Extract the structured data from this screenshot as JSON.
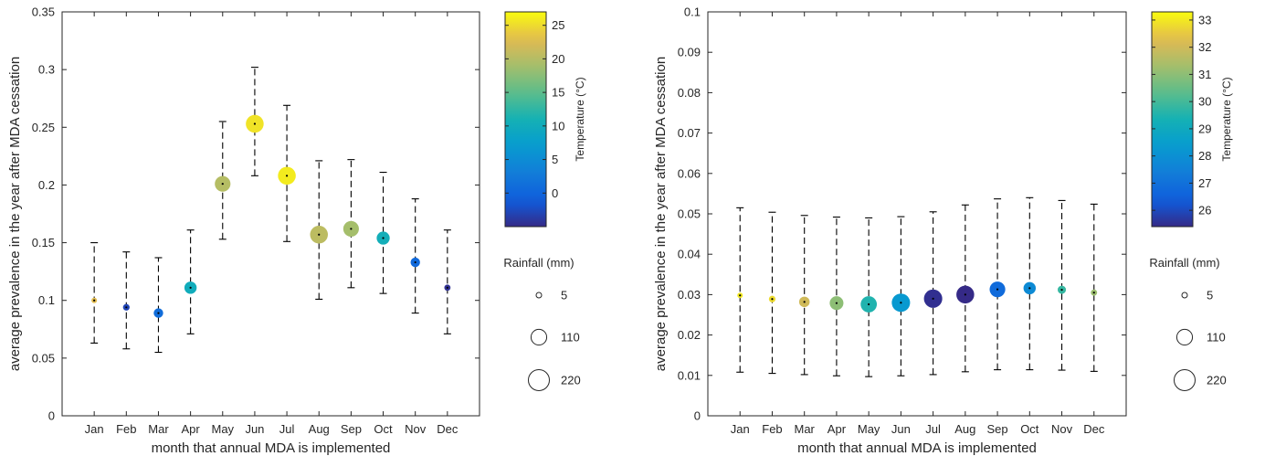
{
  "chart_data": [
    {
      "type": "scatter",
      "variant": "errorbar-bubble",
      "title": "",
      "xlabel": "month that annual MDA is implemented",
      "ylabel": "average prevalence in the year after MDA cessation",
      "categories": [
        "Jan",
        "Feb",
        "Mar",
        "Apr",
        "May",
        "Jun",
        "Jul",
        "Aug",
        "Sep",
        "Oct",
        "Nov",
        "Dec"
      ],
      "ylim": [
        0,
        0.35
      ],
      "yticks": [
        0,
        0.05,
        0.1,
        0.15,
        0.2,
        0.25,
        0.3,
        0.35
      ],
      "ytick_labels": [
        "0",
        "0.05",
        "0.1",
        "0.15",
        "0.2",
        "0.25",
        "0.3",
        "0.35"
      ],
      "values": [
        0.1,
        0.094,
        0.089,
        0.111,
        0.201,
        0.253,
        0.208,
        0.157,
        0.162,
        0.154,
        0.133,
        0.111
      ],
      "err_low": [
        0.063,
        0.058,
        0.055,
        0.071,
        0.153,
        0.208,
        0.151,
        0.101,
        0.111,
        0.106,
        0.089,
        0.071
      ],
      "err_high": [
        0.15,
        0.142,
        0.137,
        0.161,
        0.255,
        0.302,
        0.269,
        0.221,
        0.222,
        0.211,
        0.188,
        0.161
      ],
      "temperature": [
        23.0,
        -3.0,
        1.0,
        10.0,
        20.0,
        25.5,
        26.0,
        20.5,
        19.0,
        10.5,
        0.5,
        -4.5
      ],
      "rainfall": [
        5,
        10,
        30,
        60,
        110,
        150,
        150,
        150,
        110,
        70,
        30,
        8
      ],
      "grid": false,
      "colorbar": {
        "label": "Temperature (°C)",
        "range": [
          -5,
          27
        ],
        "ticks": [
          0,
          5,
          10,
          15,
          20,
          25
        ],
        "tick_labels": [
          "0",
          "5",
          "10",
          "15",
          "20",
          "25"
        ],
        "colormap": "parula"
      },
      "size_legend": {
        "title": "Rainfall (mm)",
        "values": [
          5,
          110,
          220
        ],
        "labels": [
          "5",
          "110",
          "220"
        ]
      }
    },
    {
      "type": "scatter",
      "variant": "errorbar-bubble",
      "title": "",
      "xlabel": "month that annual MDA is implemented",
      "ylabel": "average prevalence in the year after MDA cessation",
      "categories": [
        "Jan",
        "Feb",
        "Mar",
        "Apr",
        "May",
        "Jun",
        "Jul",
        "Aug",
        "Sep",
        "Oct",
        "Nov",
        "Dec"
      ],
      "ylim": [
        0,
        0.1
      ],
      "yticks": [
        0,
        0.01,
        0.02,
        0.03,
        0.04,
        0.05,
        0.06,
        0.07,
        0.08,
        0.09,
        0.1
      ],
      "ytick_labels": [
        "0",
        "0.01",
        "0.02",
        "0.03",
        "0.04",
        "0.05",
        "0.06",
        "0.07",
        "0.08",
        "0.09",
        "0.1"
      ],
      "values": [
        0.0298,
        0.0289,
        0.0282,
        0.0279,
        0.0276,
        0.028,
        0.029,
        0.03,
        0.0313,
        0.0316,
        0.0312,
        0.0305
      ],
      "err_low": [
        0.0108,
        0.0105,
        0.0102,
        0.0099,
        0.0097,
        0.0099,
        0.0102,
        0.0109,
        0.0114,
        0.0114,
        0.0113,
        0.011
      ],
      "err_high": [
        0.0515,
        0.0504,
        0.0496,
        0.0492,
        0.049,
        0.0493,
        0.0505,
        0.0522,
        0.0537,
        0.054,
        0.0533,
        0.0524
      ],
      "temperature": [
        33.0,
        32.8,
        32.0,
        31.0,
        29.5,
        28.3,
        25.5,
        25.3,
        26.8,
        27.8,
        29.8,
        31.2
      ],
      "rainfall": [
        5,
        10,
        40,
        80,
        120,
        160,
        160,
        150,
        110,
        60,
        20,
        8
      ],
      "grid": false,
      "colorbar": {
        "label": "Temperature (°C)",
        "range": [
          25.4,
          33.3
        ],
        "ticks": [
          26,
          27,
          28,
          29,
          30,
          31,
          32,
          33
        ],
        "tick_labels": [
          "26",
          "27",
          "28",
          "29",
          "30",
          "31",
          "32",
          "33"
        ],
        "colormap": "parula"
      },
      "size_legend": {
        "title": "Rainfall (mm)",
        "values": [
          5,
          110,
          220
        ],
        "labels": [
          "5",
          "110",
          "220"
        ]
      }
    }
  ]
}
